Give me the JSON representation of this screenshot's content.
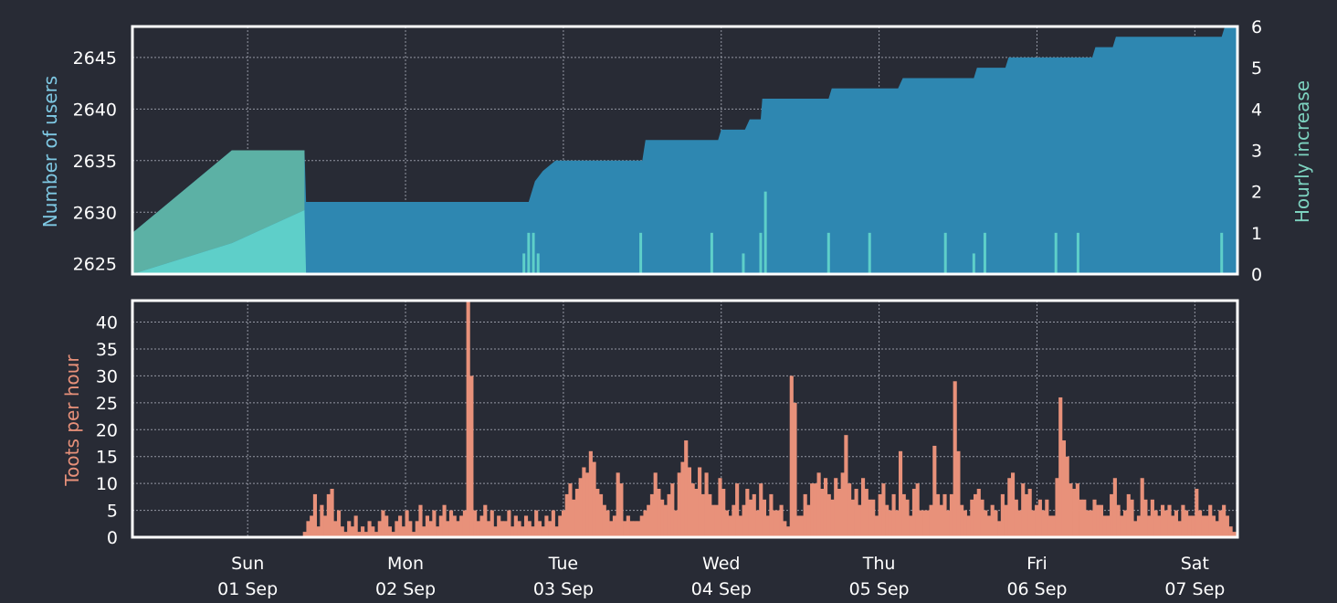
{
  "chart_data": [
    {
      "type": "area",
      "panel": "users",
      "ylabel_left": "Number of users",
      "ylabel_right": "Hourly increase",
      "ylim_left": [
        2624,
        2648
      ],
      "ylim_right": [
        0,
        6
      ],
      "yticks_left": [
        2625,
        2630,
        2635,
        2640,
        2645
      ],
      "yticks_right": [
        0,
        1,
        2,
        3,
        4,
        5,
        6
      ],
      "grid": true,
      "colors": {
        "users_area": "#2e87b1",
        "increase_fill": "#5ecfc9",
        "increase_band": "#5fb3a4",
        "left_label": "#7ec8e3",
        "right_label": "#7dd3c0"
      },
      "x_start_day": 31.27,
      "x_end_day": 38.27,
      "series": [
        {
          "values": [
            [
              31.27,
              2628
            ],
            [
              31.9,
              2636
            ],
            [
              32.36,
              2636
            ],
            [
              32.37,
              2631
            ],
            [
              33.78,
              2631
            ],
            [
              33.82,
              2633
            ],
            [
              33.87,
              2634
            ],
            [
              33.95,
              2635
            ],
            [
              34.5,
              2635
            ],
            [
              34.52,
              2637
            ],
            [
              34.98,
              2637
            ],
            [
              35.0,
              2638
            ],
            [
              35.15,
              2638
            ],
            [
              35.18,
              2639
            ],
            [
              35.25,
              2639
            ],
            [
              35.26,
              2641
            ],
            [
              35.68,
              2641
            ],
            [
              35.7,
              2642
            ],
            [
              36.12,
              2642
            ],
            [
              36.15,
              2643
            ],
            [
              36.6,
              2643
            ],
            [
              36.62,
              2644
            ],
            [
              36.8,
              2644
            ],
            [
              36.82,
              2645
            ],
            [
              36.88,
              2645
            ],
            [
              36.9,
              2645
            ],
            [
              37.35,
              2645
            ],
            [
              37.37,
              2646
            ],
            [
              37.48,
              2646
            ],
            [
              37.5,
              2647
            ],
            [
              38.17,
              2647
            ],
            [
              38.19,
              2648
            ],
            [
              38.27,
              2648
            ]
          ]
        },
        {
          "values": [
            [
              31.27,
              0
            ],
            [
              31.9,
              0.75
            ],
            [
              32.36,
              1.55
            ],
            [
              32.37,
              0
            ]
          ],
          "spikes": [
            [
              33.75,
              0.5
            ],
            [
              33.78,
              1
            ],
            [
              33.81,
              1
            ],
            [
              33.84,
              0.5
            ],
            [
              34.49,
              1
            ],
            [
              34.94,
              1
            ],
            [
              35.14,
              0.5
            ],
            [
              35.25,
              1
            ],
            [
              35.28,
              2
            ],
            [
              35.68,
              1
            ],
            [
              35.94,
              1
            ],
            [
              36.42,
              1
            ],
            [
              36.6,
              0.5
            ],
            [
              36.67,
              1
            ],
            [
              37.12,
              1
            ],
            [
              37.26,
              1
            ],
            [
              38.17,
              1
            ]
          ]
        },
        {
          "values": [
            [
              31.27,
              1
            ],
            [
              31.9,
              3
            ],
            [
              32.36,
              3
            ],
            [
              32.36,
              1.55
            ],
            [
              31.9,
              0.75
            ],
            [
              31.27,
              0
            ]
          ]
        }
      ]
    },
    {
      "type": "bar",
      "panel": "toots",
      "ylabel": "Toots per hour",
      "ylim": [
        0,
        44
      ],
      "yticks": [
        0,
        5,
        10,
        15,
        20,
        25,
        30,
        35,
        40
      ],
      "grid": true,
      "color": "#e8917a",
      "label_color": "#e8917a",
      "x_start_day": 31.27,
      "data_start_day": 32.35,
      "hourly_values": [
        1,
        3,
        4,
        8,
        2,
        6,
        4,
        8,
        9,
        3,
        5,
        2,
        1,
        3,
        2,
        4,
        1,
        2,
        1,
        3,
        2,
        1,
        3,
        5,
        4,
        2,
        1,
        3,
        4,
        2,
        5,
        3,
        1,
        3,
        6,
        2,
        4,
        3,
        5,
        2,
        4,
        6,
        3,
        5,
        4,
        3,
        4,
        5,
        44,
        30,
        5,
        3,
        4,
        6,
        3,
        5,
        2,
        4,
        3,
        3,
        5,
        2,
        4,
        3,
        2,
        4,
        3,
        2,
        5,
        3,
        2,
        4,
        3,
        5,
        2,
        4,
        5,
        8,
        10,
        7,
        9,
        11,
        13,
        12,
        16,
        14,
        9,
        8,
        6,
        5,
        3,
        4,
        12,
        10,
        3,
        4,
        3,
        3,
        3,
        4,
        5,
        6,
        8,
        12,
        9,
        7,
        6,
        8,
        10,
        5,
        12,
        14,
        18,
        13,
        10,
        9,
        13,
        8,
        12,
        8,
        6,
        6,
        11,
        9,
        5,
        4,
        6,
        10,
        4,
        6,
        9,
        7,
        8,
        5,
        10,
        7,
        4,
        8,
        5,
        5,
        6,
        3,
        2,
        30,
        25,
        4,
        4,
        8,
        6,
        10,
        10,
        12,
        9,
        11,
        8,
        7,
        11,
        9,
        12,
        19,
        10,
        7,
        9,
        6,
        11,
        9,
        7,
        7,
        4,
        8,
        10,
        6,
        5,
        8,
        5,
        16,
        8,
        7,
        4,
        9,
        10,
        5,
        5,
        5,
        6,
        17,
        8,
        6,
        8,
        5,
        8,
        29,
        16,
        6,
        5,
        4,
        7,
        8,
        9,
        7,
        5,
        4,
        6,
        5,
        3,
        8,
        6,
        11,
        12,
        7,
        5,
        10,
        8,
        9,
        5,
        6,
        7,
        5,
        7,
        4,
        4,
        11,
        26,
        18,
        15,
        10,
        9,
        10,
        7,
        7,
        5,
        5,
        7,
        6,
        6,
        4,
        4,
        8,
        11,
        6,
        4,
        5,
        8,
        7,
        3,
        4,
        11,
        7,
        4,
        7,
        5,
        4,
        6,
        5,
        6,
        4,
        5,
        3,
        6,
        5,
        4,
        4,
        9,
        5,
        4,
        4,
        6,
        4,
        3,
        5,
        6,
        4,
        2,
        1
      ]
    }
  ],
  "x_axis": {
    "ticks": [
      {
        "weekday": "Sun",
        "date": "01 Sep",
        "day": 32.0
      },
      {
        "weekday": "Mon",
        "date": "02 Sep",
        "day": 33.0
      },
      {
        "weekday": "Tue",
        "date": "03 Sep",
        "day": 34.0
      },
      {
        "weekday": "Wed",
        "date": "04 Sep",
        "day": 35.0
      },
      {
        "weekday": "Thu",
        "date": "05 Sep",
        "day": 36.0
      },
      {
        "weekday": "Fri",
        "date": "06 Sep",
        "day": 37.0
      },
      {
        "weekday": "Sat",
        "date": "07 Sep",
        "day": 38.0
      }
    ]
  }
}
